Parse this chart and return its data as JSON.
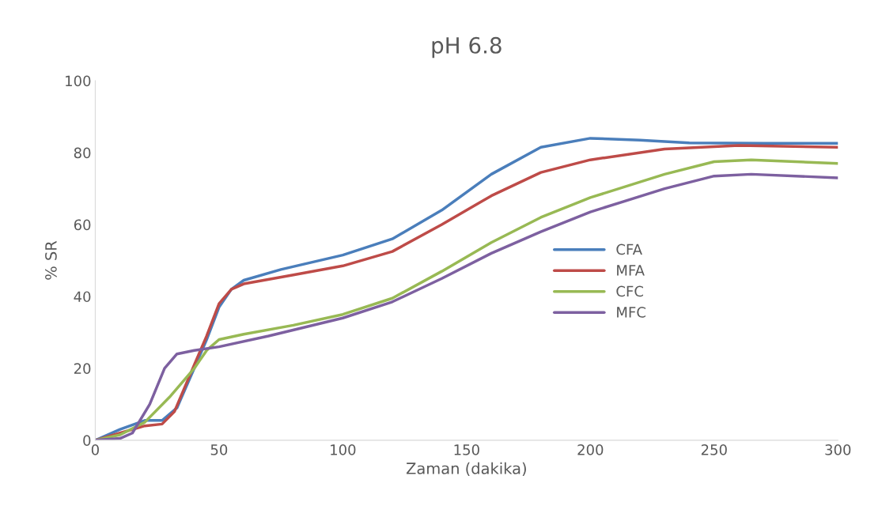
{
  "chart_data": {
    "type": "line",
    "title": "pH 6.8",
    "xlabel": "Zaman (dakika)",
    "ylabel": "% SR",
    "xlim": [
      0,
      300
    ],
    "xticks": [
      0,
      50,
      100,
      150,
      200,
      250,
      300
    ],
    "ylim": [
      0,
      100
    ],
    "yticks": [
      0,
      20,
      40,
      60,
      80,
      100
    ],
    "grid": false,
    "legend": "center right",
    "marker": "none",
    "line_style": "solid",
    "series": [
      {
        "name": "CFA",
        "color": "#4a7ebb",
        "x": [
          0,
          10,
          20,
          27,
          33,
          40,
          45,
          50,
          55,
          60,
          75,
          100,
          120,
          140,
          160,
          180,
          200,
          220,
          240,
          270,
          300
        ],
        "values": [
          0,
          3,
          5.5,
          5.5,
          9,
          20,
          28,
          37,
          42,
          44.5,
          47.5,
          51.5,
          56,
          64,
          74,
          81.5,
          84,
          83.5,
          82.7,
          82.6,
          82.6
        ]
      },
      {
        "name": "MFA",
        "color": "#be4b48",
        "x": [
          0,
          10,
          20,
          27,
          32,
          40,
          45,
          50,
          55,
          60,
          80,
          100,
          120,
          140,
          160,
          180,
          200,
          230,
          260,
          300
        ],
        "values": [
          0,
          2,
          4,
          4.5,
          8,
          21,
          29,
          38,
          42,
          43.5,
          46,
          48.5,
          52.5,
          60,
          68,
          74.5,
          78,
          81,
          82,
          81.5
        ]
      },
      {
        "name": "CFC",
        "color": "#98b954",
        "x": [
          0,
          10,
          20,
          30,
          40,
          45,
          50,
          60,
          80,
          100,
          120,
          140,
          160,
          180,
          200,
          230,
          250,
          265,
          300
        ],
        "values": [
          0,
          1.5,
          5,
          12,
          20,
          25,
          28,
          29.5,
          32,
          35,
          39.5,
          47,
          55,
          62,
          67.5,
          74,
          77.5,
          78,
          77
        ]
      },
      {
        "name": "MFC",
        "color": "#7d60a0",
        "x": [
          0,
          10,
          15,
          22,
          28,
          33,
          40,
          50,
          70,
          100,
          120,
          140,
          160,
          180,
          200,
          230,
          250,
          265,
          300
        ],
        "values": [
          0,
          0.5,
          2,
          10,
          20,
          24,
          25,
          26,
          29,
          34,
          38.5,
          45,
          52,
          58,
          63.5,
          70,
          73.5,
          74,
          73
        ]
      }
    ]
  }
}
